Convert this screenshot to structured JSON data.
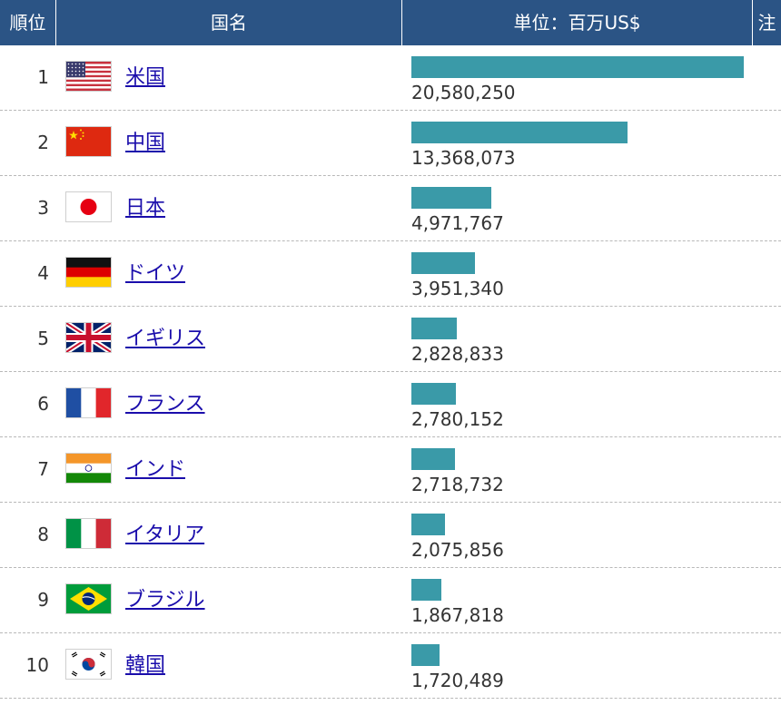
{
  "header": {
    "rank": "順位",
    "country": "国名",
    "unit": "単位：百万US$",
    "note": "注"
  },
  "colors": {
    "header_bg": "#2b5485",
    "bar": "#3a9aa8",
    "link": "#1a0dab"
  },
  "chart_data": {
    "type": "bar",
    "orientation": "horizontal",
    "categories": [
      "米国",
      "中国",
      "日本",
      "ドイツ",
      "イギリス",
      "フランス",
      "インド",
      "イタリア",
      "ブラジル",
      "韓国"
    ],
    "values": [
      20580250,
      13368073,
      4971767,
      3951340,
      2828833,
      2780152,
      2718732,
      2075856,
      1867818,
      1720489
    ],
    "ylabel": "単位：百万US$"
  },
  "rows": [
    {
      "rank": "1",
      "name": "米国",
      "flag": "usa-flag-icon",
      "value_label": "20,580,250"
    },
    {
      "rank": "2",
      "name": "中国",
      "flag": "china-flag-icon",
      "value_label": "13,368,073"
    },
    {
      "rank": "3",
      "name": "日本",
      "flag": "japan-flag-icon",
      "value_label": "4,971,767"
    },
    {
      "rank": "4",
      "name": "ドイツ",
      "flag": "germany-flag-icon",
      "value_label": "3,951,340"
    },
    {
      "rank": "5",
      "name": "イギリス",
      "flag": "uk-flag-icon",
      "value_label": "2,828,833"
    },
    {
      "rank": "6",
      "name": "フランス",
      "flag": "france-flag-icon",
      "value_label": "2,780,152"
    },
    {
      "rank": "7",
      "name": "インド",
      "flag": "india-flag-icon",
      "value_label": "2,718,732"
    },
    {
      "rank": "8",
      "name": "イタリア",
      "flag": "italy-flag-icon",
      "value_label": "2,075,856"
    },
    {
      "rank": "9",
      "name": "ブラジル",
      "flag": "brazil-flag-icon",
      "value_label": "1,867,818"
    },
    {
      "rank": "10",
      "name": "韓国",
      "flag": "korea-flag-icon",
      "value_label": "1,720,489"
    }
  ]
}
